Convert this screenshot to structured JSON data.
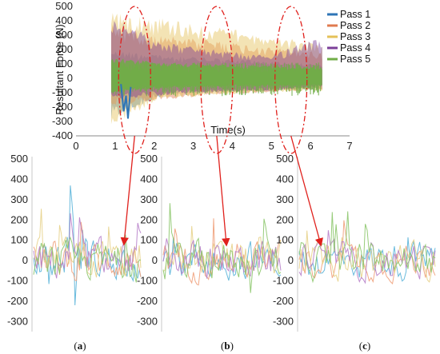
{
  "chart_data": [
    {
      "type": "area",
      "ylabel": "Resultant Force (N)",
      "xlabel": "Time(s)",
      "xlim": [
        0,
        7
      ],
      "ylim": [
        -400,
        500
      ],
      "xticks": [
        "0",
        "1",
        "2",
        "3",
        "4",
        "5",
        "6",
        "7"
      ],
      "yticks": [
        "500",
        "400",
        "300",
        "200",
        "100",
        "0",
        "-100",
        "-200",
        "-300",
        "-400"
      ],
      "legend_position": "top-right",
      "series": [
        {
          "name": "Pass 1",
          "color": "#2e75b6",
          "x_range": [
            0.9,
            6.3
          ],
          "upper": [
            200,
            160,
            140,
            120,
            100
          ],
          "lower": [
            -280,
            -120,
            -100,
            -90,
            -80
          ]
        },
        {
          "name": "Pass 2",
          "color": "#e07b4f",
          "x_range": [
            0.9,
            6.3
          ],
          "upper": [
            380,
            300,
            260,
            220,
            180
          ],
          "lower": [
            -200,
            -150,
            -120,
            -100,
            -80
          ]
        },
        {
          "name": "Pass 3",
          "color": "#e5c158",
          "x_range": [
            0.9,
            6.3
          ],
          "upper": [
            460,
            420,
            360,
            300,
            240
          ],
          "lower": [
            -330,
            -140,
            -120,
            -100,
            -90
          ]
        },
        {
          "name": "Pass 4",
          "color": "#7b3f99",
          "x_range": [
            0.9,
            6.3
          ],
          "upper": [
            420,
            260,
            200,
            160,
            300
          ],
          "lower": [
            -150,
            -120,
            -100,
            -90,
            -60
          ]
        },
        {
          "name": "Pass 5",
          "color": "#70ad47",
          "x_range": [
            0.9,
            6.3
          ],
          "upper": [
            150,
            110,
            100,
            90,
            80
          ],
          "lower": [
            -100,
            -70,
            -60,
            -55,
            -50
          ]
        }
      ],
      "highlight_times": [
        1.5,
        3.6,
        5.5
      ]
    },
    {
      "type": "line",
      "panel": "a",
      "yticks": [
        "500",
        "400",
        "300",
        "200",
        "100",
        "0",
        "-100",
        "-200",
        "-300"
      ],
      "ylim": [
        -350,
        520
      ],
      "series": [
        {
          "name": "Pass 1",
          "color": "#5ab4d9"
        },
        {
          "name": "Pass 2",
          "color": "#f0a07a"
        },
        {
          "name": "Pass 3",
          "color": "#e7d28a"
        },
        {
          "name": "Pass 4",
          "color": "#b77fc9"
        },
        {
          "name": "Pass 5",
          "color": "#8cc66b"
        }
      ]
    },
    {
      "type": "line",
      "panel": "b",
      "yticks": [
        "500",
        "400",
        "300",
        "200",
        "100",
        "0",
        "-100",
        "-200",
        "-300"
      ],
      "ylim": [
        -350,
        520
      ]
    },
    {
      "type": "line",
      "panel": "c",
      "yticks": [
        "500",
        "400",
        "300",
        "200",
        "100",
        "0",
        "-100",
        "-200",
        "-300"
      ],
      "ylim": [
        -350,
        520
      ]
    }
  ],
  "panel_labels": [
    {
      "pre": "(",
      "letter": "a",
      "post": ")"
    },
    {
      "pre": "(",
      "letter": "b",
      "post": ")"
    },
    {
      "pre": "(",
      "letter": "c",
      "post": ")"
    }
  ]
}
